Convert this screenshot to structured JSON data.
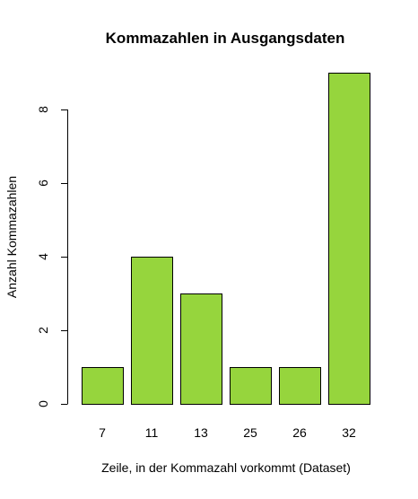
{
  "chart_data": {
    "type": "bar",
    "title": "Kommazahlen in Ausgangsdaten",
    "xlabel": "Zeile, in der Kommazahl vorkommt (Dataset)",
    "ylabel": "Anzahl Kommazahlen",
    "categories": [
      "7",
      "11",
      "13",
      "25",
      "26",
      "32"
    ],
    "values": [
      1,
      4,
      3,
      1,
      1,
      9
    ],
    "ylim": [
      0,
      9
    ],
    "yticks": [
      "0",
      "2",
      "4",
      "6",
      "8"
    ],
    "grid": false,
    "legend": "none",
    "bar_color": "#96d53d",
    "bar_border_color": "#000000"
  }
}
